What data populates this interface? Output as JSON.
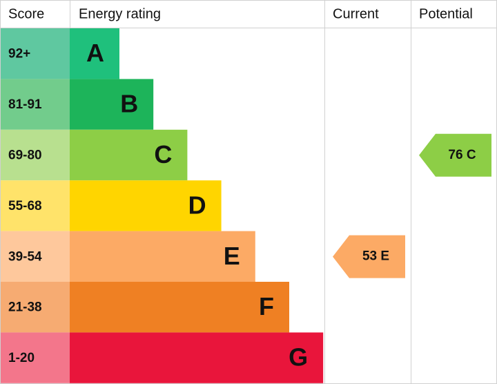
{
  "header": {
    "score": "Score",
    "rating": "Energy rating",
    "current": "Current",
    "potential": "Potential"
  },
  "bands": [
    {
      "score": "92+",
      "letter": "A",
      "score_color": "#5fc8a0",
      "color": "#1fc07c"
    },
    {
      "score": "81-91",
      "letter": "B",
      "score_color": "#72cc8c",
      "color": "#1db45a"
    },
    {
      "score": "69-80",
      "letter": "C",
      "score_color": "#b8e08f",
      "color": "#8dce46"
    },
    {
      "score": "55-68",
      "letter": "D",
      "score_color": "#ffe36a",
      "color": "#ffd500"
    },
    {
      "score": "39-54",
      "letter": "E",
      "score_color": "#fec89c",
      "color": "#fcaa65"
    },
    {
      "score": "21-38",
      "letter": "F",
      "score_color": "#f6ab72",
      "color": "#ef8023"
    },
    {
      "score": "1-20",
      "letter": "G",
      "score_color": "#f3768b",
      "color": "#e9153b"
    }
  ],
  "current": {
    "label": "53 E",
    "color": "#fcaa65"
  },
  "potential": {
    "label": "76 C",
    "color": "#8dce46"
  }
}
